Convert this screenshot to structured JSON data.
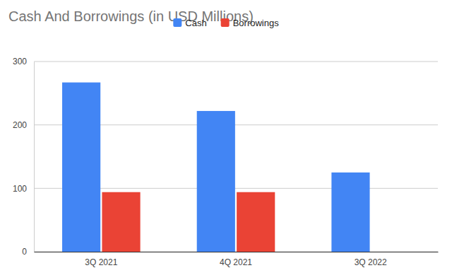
{
  "chart_data": {
    "type": "bar",
    "title": "Cash And Borrowings (in USD Millions)",
    "categories": [
      "3Q 2021",
      "4Q 2021",
      "3Q 2022"
    ],
    "series": [
      {
        "name": "Cash",
        "color": "#4285f4",
        "values": [
          267,
          222,
          125
        ]
      },
      {
        "name": "Borrowings",
        "color": "#ea4335",
        "values": [
          94,
          94,
          0
        ]
      }
    ],
    "ylim": [
      0,
      300
    ],
    "yticks": [
      0,
      100,
      200,
      300
    ],
    "grid": true,
    "legend": "top"
  }
}
